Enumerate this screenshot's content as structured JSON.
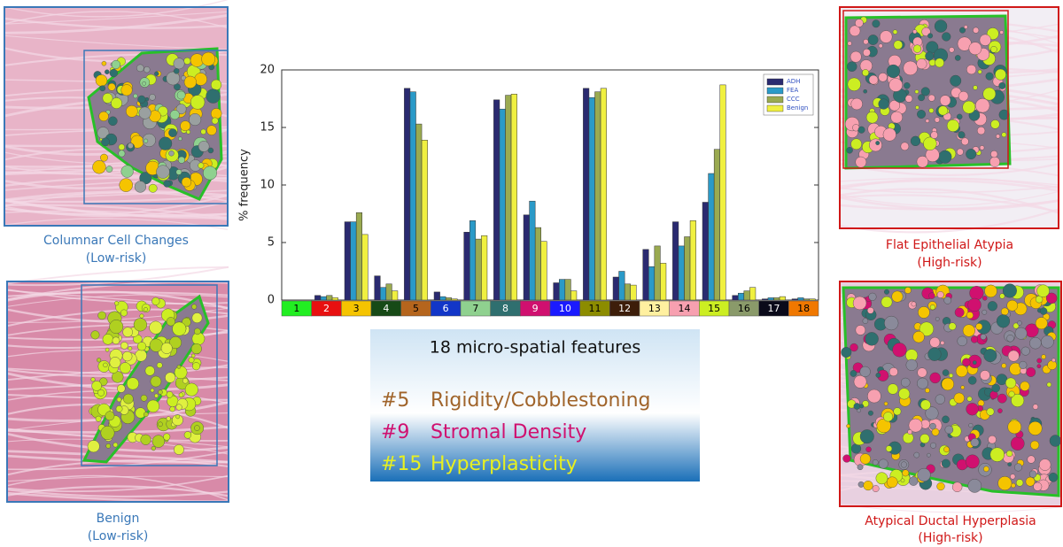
{
  "chart_data": {
    "type": "bar",
    "y_label": "% frequency",
    "categories": [
      "1",
      "2",
      "3",
      "4",
      "5",
      "6",
      "7",
      "8",
      "9",
      "10",
      "11",
      "12",
      "13",
      "14",
      "15",
      "16",
      "17",
      "18"
    ],
    "category_colors": [
      "#22ee22",
      "#e81010",
      "#f5c400",
      "#174a17",
      "#b5651d",
      "#1236c8",
      "#8fd18f",
      "#2f6f6f",
      "#d0106f",
      "#1a1aff",
      "#8c8c00",
      "#3d1e0a",
      "#fff0a0",
      "#f7a0b0",
      "#ccee22",
      "#8a9a6a",
      "#0a0a1a",
      "#f07800"
    ],
    "series": [
      {
        "name": "ADH",
        "color": "#2a2a70",
        "values": [
          0,
          0.4,
          6.8,
          2.1,
          18.4,
          0.7,
          5.9,
          17.4,
          7.4,
          1.5,
          18.4,
          2.0,
          4.4,
          6.8,
          8.5,
          0.4,
          0.1,
          0.1
        ]
      },
      {
        "name": "FEA",
        "color": "#2a9ac8",
        "values": [
          0,
          0.3,
          6.8,
          1.1,
          18.1,
          0.3,
          6.9,
          16.6,
          8.6,
          1.8,
          17.6,
          2.5,
          2.9,
          4.7,
          11.0,
          0.6,
          0.2,
          0.2
        ]
      },
      {
        "name": "CCC",
        "color": "#9aaa50",
        "values": [
          0,
          0.4,
          7.6,
          1.4,
          15.3,
          0.2,
          5.3,
          17.8,
          6.3,
          1.8,
          18.1,
          1.4,
          4.7,
          5.5,
          13.1,
          0.8,
          0.2,
          0.1
        ]
      },
      {
        "name": "Benign",
        "color": "#f0f040",
        "values": [
          0,
          0.2,
          5.7,
          0.8,
          13.9,
          0.1,
          5.6,
          17.9,
          5.1,
          0.8,
          18.4,
          1.3,
          3.2,
          6.9,
          18.7,
          1.1,
          0.3,
          0.1
        ]
      }
    ],
    "ylim": [
      0,
      20
    ],
    "yticks": [
      0,
      5,
      10,
      15,
      20
    ],
    "legend": "upper-right"
  },
  "feature_box": {
    "title": "18 micro-spatial features",
    "items": [
      {
        "number": "#5",
        "label": "Rigidity/Cobblestoning",
        "color": "#a0642a"
      },
      {
        "number": "#9",
        "label": "Stromal Density",
        "color": "#d0106f"
      },
      {
        "number": "#15",
        "label": "Hyperplasticity",
        "color": "#e8f020"
      }
    ]
  },
  "panels": [
    {
      "title": "Columnar Cell Changes",
      "risk": "(Low-risk)"
    },
    {
      "title": "Benign",
      "risk": "(Low-risk)"
    },
    {
      "title": "Flat Epithelial Atypia",
      "risk": "(High-risk)"
    },
    {
      "title": "Atypical Ductal Hyperplasia",
      "risk": "(High-risk)"
    }
  ]
}
